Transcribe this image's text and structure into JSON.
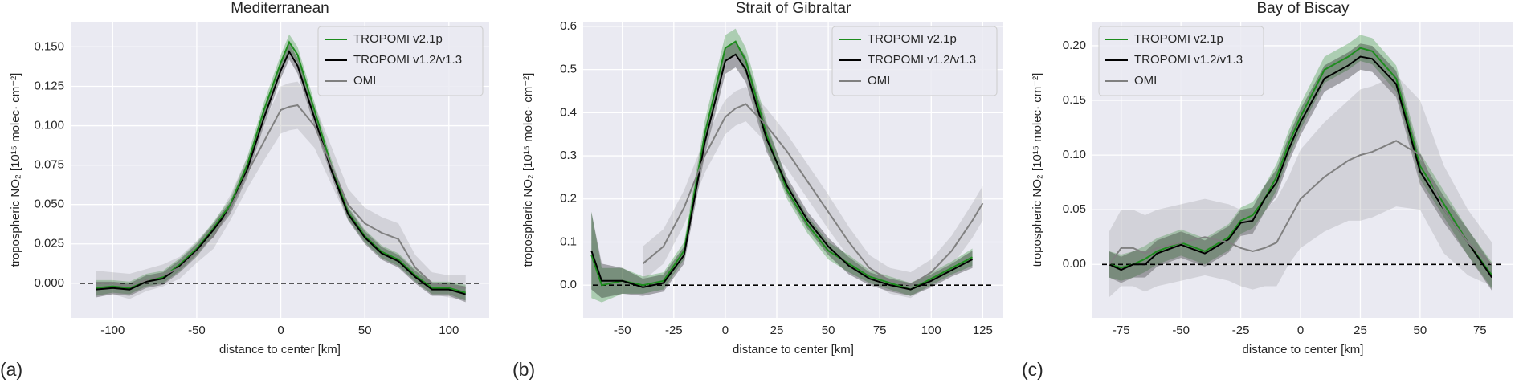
{
  "chart_data": [
    {
      "type": "line",
      "title": "Mediterranean",
      "label": "(a)",
      "xlabel": "distance to center [km]",
      "ylabel": "tropospheric NO₂ [10¹⁵ molec· cm⁻²]",
      "x": [
        -110,
        -100,
        -90,
        -80,
        -70,
        -60,
        -50,
        -40,
        -30,
        -20,
        -10,
        0,
        5,
        10,
        20,
        30,
        40,
        50,
        60,
        70,
        80,
        90,
        100,
        110
      ],
      "series": [
        {
          "name": "TROPOMI v2.1p",
          "color": "#1e8c1e",
          "values": [
            -0.003,
            -0.002,
            -0.003,
            0.002,
            0.004,
            0.012,
            0.022,
            0.035,
            0.05,
            0.075,
            0.11,
            0.14,
            0.153,
            0.145,
            0.11,
            0.075,
            0.045,
            0.03,
            0.02,
            0.015,
            0.005,
            -0.003,
            -0.003,
            -0.006
          ],
          "err": [
            0.005,
            0.004,
            0.004,
            0.004,
            0.004,
            0.004,
            0.004,
            0.004,
            0.004,
            0.005,
            0.005,
            0.005,
            0.005,
            0.005,
            0.005,
            0.004,
            0.004,
            0.004,
            0.004,
            0.004,
            0.004,
            0.004,
            0.004,
            0.005
          ]
        },
        {
          "name": "TROPOMI v1.2/v1.3",
          "color": "#000000",
          "values": [
            -0.004,
            -0.003,
            -0.004,
            0.001,
            0.003,
            0.011,
            0.021,
            0.034,
            0.048,
            0.072,
            0.105,
            0.135,
            0.147,
            0.138,
            0.105,
            0.072,
            0.044,
            0.029,
            0.019,
            0.014,
            0.004,
            -0.004,
            -0.004,
            -0.007
          ],
          "err": [
            0.005,
            0.004,
            0.004,
            0.004,
            0.004,
            0.004,
            0.004,
            0.004,
            0.004,
            0.005,
            0.005,
            0.005,
            0.005,
            0.005,
            0.005,
            0.004,
            0.004,
            0.004,
            0.004,
            0.004,
            0.004,
            0.004,
            0.004,
            0.005
          ]
        },
        {
          "name": "OMI",
          "color": "#808080",
          "values": [
            0.0,
            0.0,
            -0.002,
            0.002,
            0.005,
            0.01,
            0.02,
            0.03,
            0.048,
            0.07,
            0.09,
            0.11,
            0.112,
            0.113,
            0.1,
            0.075,
            0.05,
            0.038,
            0.032,
            0.028,
            0.01,
            0.0,
            -0.002,
            -0.003
          ],
          "err": [
            0.008,
            0.007,
            0.008,
            0.007,
            0.007,
            0.007,
            0.007,
            0.008,
            0.008,
            0.01,
            0.012,
            0.015,
            0.015,
            0.015,
            0.014,
            0.012,
            0.01,
            0.01,
            0.01,
            0.01,
            0.008,
            0.007,
            0.007,
            0.008
          ]
        }
      ],
      "hline": 0,
      "xlim": [
        -125,
        124
      ],
      "ylim": [
        -0.022,
        0.166
      ],
      "xticks": [
        -100,
        -50,
        0,
        50,
        100
      ],
      "yticks": [
        {
          "value": 0,
          "label": "0.000"
        },
        {
          "value": 0.025,
          "label": "0.025"
        },
        {
          "value": 0.05,
          "label": "0.050"
        },
        {
          "value": 0.075,
          "label": "0.075"
        },
        {
          "value": 0.1,
          "label": "0.100"
        },
        {
          "value": 0.125,
          "label": "0.125"
        },
        {
          "value": 0.15,
          "label": "0.150"
        }
      ],
      "grid": true,
      "legend": "upper right"
    },
    {
      "type": "line",
      "title": "Strait of Gibraltar",
      "label": "(b)",
      "xlabel": "distance to center [km]",
      "ylabel": "tropospheric NO₂ [10¹⁵ molec· cm⁻²]",
      "x": [
        -65,
        -60,
        -50,
        -40,
        -30,
        -20,
        -10,
        0,
        5,
        10,
        20,
        30,
        40,
        50,
        60,
        70,
        80,
        90,
        100,
        110,
        120,
        125
      ],
      "series": [
        {
          "name": "TROPOMI v2.1p",
          "color": "#1e8c1e",
          "values": [
            0.07,
            0.0,
            0.01,
            0.0,
            0.01,
            0.08,
            0.35,
            0.55,
            0.565,
            0.52,
            0.35,
            0.22,
            0.14,
            0.08,
            0.05,
            0.02,
            0.005,
            -0.01,
            0.015,
            0.04,
            0.065,
            null
          ],
          "err": [
            0.1,
            0.04,
            0.03,
            0.02,
            0.02,
            0.02,
            0.03,
            0.03,
            0.03,
            0.03,
            0.03,
            0.02,
            0.02,
            0.02,
            0.02,
            0.015,
            0.015,
            0.015,
            0.015,
            0.015,
            0.02,
            null
          ]
        },
        {
          "name": "TROPOMI v1.2/v1.3",
          "color": "#000000",
          "values": [
            0.08,
            0.01,
            0.01,
            -0.005,
            0.005,
            0.07,
            0.33,
            0.52,
            0.535,
            0.5,
            0.34,
            0.23,
            0.15,
            0.09,
            0.045,
            0.015,
            0.0,
            -0.01,
            0.01,
            0.035,
            0.06,
            null
          ],
          "err": [
            0.09,
            0.04,
            0.03,
            0.02,
            0.02,
            0.02,
            0.03,
            0.03,
            0.03,
            0.03,
            0.03,
            0.02,
            0.02,
            0.02,
            0.02,
            0.015,
            0.015,
            0.015,
            0.015,
            0.015,
            0.02,
            null
          ]
        },
        {
          "name": "OMI",
          "color": "#808080",
          "values": [
            null,
            null,
            null,
            0.05,
            0.09,
            0.18,
            0.3,
            0.39,
            0.41,
            0.42,
            0.37,
            0.31,
            0.24,
            0.17,
            0.1,
            0.04,
            0.01,
            0.0,
            0.03,
            0.08,
            0.15,
            0.19
          ],
          "err": [
            null,
            null,
            null,
            0.04,
            0.04,
            0.04,
            0.04,
            0.04,
            0.04,
            0.04,
            0.04,
            0.04,
            0.04,
            0.04,
            0.035,
            0.03,
            0.03,
            0.03,
            0.03,
            0.035,
            0.04,
            0.04
          ]
        }
      ],
      "hline": 0,
      "xlim": [
        -69,
        135
      ],
      "ylim": [
        -0.076,
        0.611
      ],
      "xticks": [
        -50,
        -25,
        0,
        25,
        50,
        75,
        100,
        125
      ],
      "yticks": [
        {
          "value": 0,
          "label": "0.0"
        },
        0.1,
        0.2,
        0.3,
        0.4,
        0.5,
        0.6
      ],
      "grid": true,
      "legend": "upper right"
    },
    {
      "type": "line",
      "title": "Bay of Biscay",
      "label": "(c)",
      "xlabel": "distance to center [km]",
      "ylabel": "tropospheric NO₂ [10¹⁵ molec· cm⁻²]",
      "x": [
        -80,
        -75,
        -70,
        -65,
        -60,
        -50,
        -40,
        -30,
        -25,
        -20,
        -15,
        -10,
        -5,
        0,
        10,
        20,
        25,
        30,
        40,
        50,
        60,
        70,
        80
      ],
      "series": [
        {
          "name": "TROPOMI v2.1p",
          "color": "#1e8c1e",
          "values": [
            0.0,
            -0.003,
            0.0,
            0.005,
            0.012,
            0.02,
            0.012,
            0.025,
            0.04,
            0.045,
            0.06,
            0.08,
            0.11,
            0.135,
            0.178,
            0.19,
            0.198,
            0.195,
            0.17,
            0.09,
            0.055,
            0.02,
            -0.01
          ],
          "err": [
            0.012,
            0.012,
            0.012,
            0.012,
            0.012,
            0.012,
            0.012,
            0.012,
            0.012,
            0.012,
            0.012,
            0.012,
            0.012,
            0.012,
            0.012,
            0.012,
            0.012,
            0.012,
            0.012,
            0.012,
            0.012,
            0.012,
            0.012
          ]
        },
        {
          "name": "TROPOMI v1.2/v1.3",
          "color": "#000000",
          "values": [
            0.0,
            -0.005,
            0.0,
            0.0,
            0.01,
            0.018,
            0.01,
            0.023,
            0.038,
            0.04,
            0.06,
            0.075,
            0.105,
            0.13,
            0.17,
            0.182,
            0.19,
            0.188,
            0.165,
            0.085,
            0.05,
            0.02,
            -0.012
          ],
          "err": [
            0.012,
            0.012,
            0.012,
            0.012,
            0.012,
            0.012,
            0.012,
            0.012,
            0.012,
            0.012,
            0.012,
            0.012,
            0.012,
            0.012,
            0.012,
            0.012,
            0.012,
            0.012,
            0.012,
            0.012,
            0.012,
            0.012,
            0.012
          ]
        },
        {
          "name": "OMI",
          "color": "#808080",
          "values": [
            0.0,
            0.015,
            0.015,
            0.01,
            0.015,
            0.02,
            0.025,
            0.02,
            0.015,
            0.012,
            0.015,
            0.02,
            0.04,
            0.06,
            0.08,
            0.095,
            0.1,
            0.103,
            0.113,
            0.1,
            0.05,
            0.02,
            0.0
          ],
          "err": [
            0.03,
            0.035,
            0.035,
            0.035,
            0.035,
            0.035,
            0.035,
            0.035,
            0.035,
            0.035,
            0.035,
            0.04,
            0.04,
            0.045,
            0.05,
            0.055,
            0.06,
            0.06,
            0.06,
            0.05,
            0.04,
            0.03,
            0.02
          ]
        }
      ],
      "hline": 0,
      "xlim": [
        -87,
        89
      ],
      "ylim": [
        -0.049,
        0.222
      ],
      "xticks": [
        -75,
        -50,
        -25,
        0,
        25,
        50,
        75
      ],
      "yticks": [
        {
          "value": 0,
          "label": "0.00"
        },
        {
          "value": 0.05,
          "label": "0.05"
        },
        {
          "value": 0.1,
          "label": "0.10"
        },
        {
          "value": 0.15,
          "label": "0.15"
        },
        {
          "value": 0.2,
          "label": "0.20"
        }
      ],
      "grid": true,
      "legend": "upper left"
    }
  ]
}
